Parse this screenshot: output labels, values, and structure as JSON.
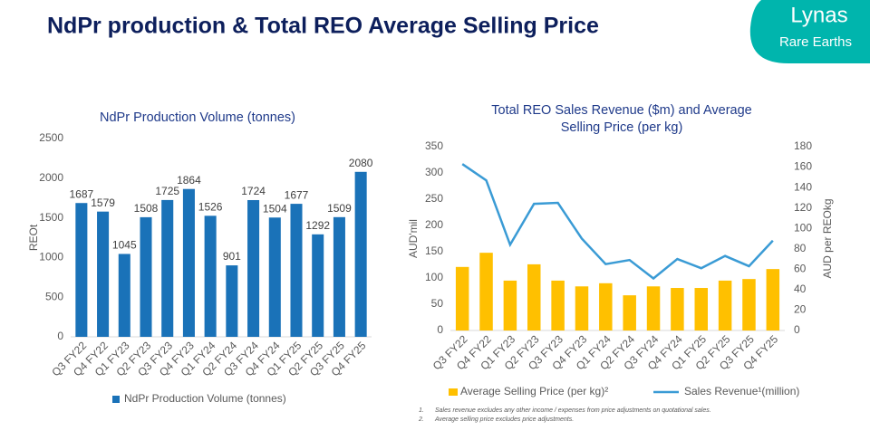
{
  "title": "NdPr production & Total REO Average Selling Price",
  "logo": {
    "name": "Lynas",
    "tagline": "Rare Earths"
  },
  "footnotes": [
    "Sales revenue excludes any other income / expenses from price adjustments on quotational sales.",
    "Average selling price excludes price adjustments."
  ],
  "chart_data": [
    {
      "type": "bar",
      "title": "NdPr Production Volume (tonnes)",
      "y_label": "REOt",
      "categories": [
        "Q3 FY22",
        "Q4 FY22",
        "Q1 FY23",
        "Q2 FY23",
        "Q3 FY23",
        "Q4 FY23",
        "Q1 FY24",
        "Q2 FY24",
        "Q3 FY24",
        "Q4 FY24",
        "Q1 FY25",
        "Q2 FY25",
        "Q3 FY25",
        "Q4 FY25"
      ],
      "series": [
        {
          "name": "NdPr Production Volume (tonnes)",
          "color": "#1a72b8",
          "values": [
            1687,
            1579,
            1045,
            1508,
            1725,
            1864,
            1526,
            901,
            1724,
            1504,
            1677,
            1292,
            1509,
            2080
          ]
        }
      ],
      "ylim": [
        0,
        2500
      ],
      "yticks": [
        0,
        500,
        1000,
        1500,
        2000,
        2500
      ],
      "data_labels": true,
      "legend": "bottom"
    },
    {
      "type": "combo",
      "title": "Total REO Sales Revenue ($m) and Average Selling Price (per kg)",
      "y_label": "AUD'mil",
      "y2_label": "AUD per REOkg",
      "categories": [
        "Q3 FY22",
        "Q4 FY22",
        "Q1 FY23",
        "Q2 FY23",
        "Q3 FY23",
        "Q4 FY23",
        "Q1 FY24",
        "Q2 FY24",
        "Q3 FY24",
        "Q4 FY24",
        "Q1 FY25",
        "Q2 FY25",
        "Q3 FY25",
        "Q4 FY25"
      ],
      "series": [
        {
          "name": "Average Selling Price (per kg)²",
          "type": "bar",
          "color": "#ffc000",
          "values": [
            121,
            148,
            95,
            126,
            95,
            84,
            90,
            67,
            84,
            81,
            81,
            95,
            98,
            117
          ]
        },
        {
          "name": "Sales Revenue¹(million)",
          "type": "line",
          "axis": "y2",
          "color": "#3a9bd5",
          "values": [
            163,
            147,
            84,
            124,
            125,
            90,
            65,
            69,
            51,
            70,
            61,
            73,
            63,
            88
          ]
        }
      ],
      "ylim": [
        0,
        350
      ],
      "yticks": [
        0,
        50,
        100,
        150,
        200,
        250,
        300,
        350
      ],
      "y2lim": [
        0,
        180
      ],
      "y2ticks": [
        0,
        20,
        40,
        60,
        80,
        100,
        120,
        140,
        160,
        180
      ],
      "legend": "bottom"
    }
  ]
}
